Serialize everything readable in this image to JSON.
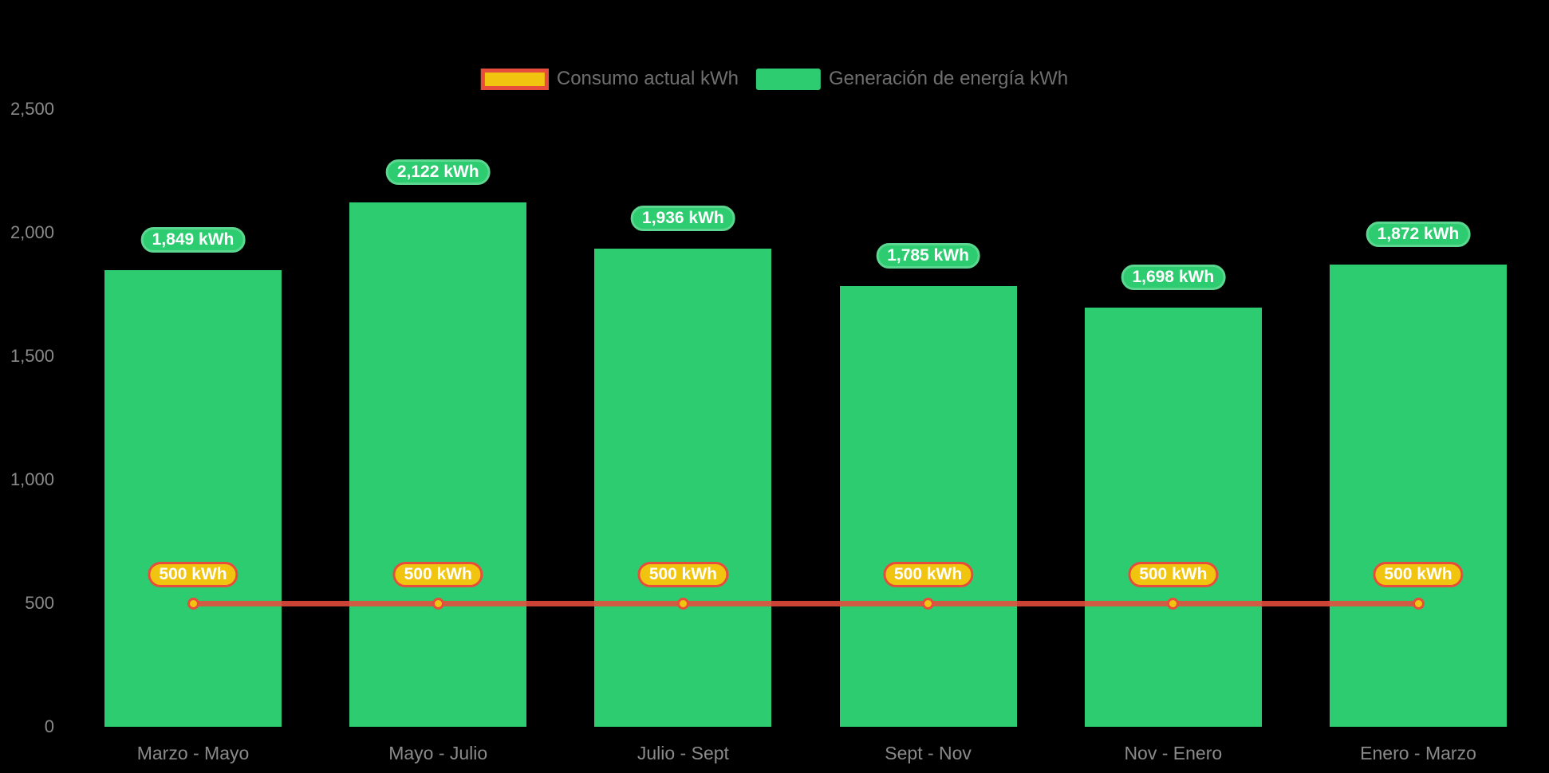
{
  "chart_data": {
    "type": "combo",
    "title": "",
    "categories": [
      "Marzo - Mayo",
      "Mayo - Julio",
      "Julio - Sept",
      "Sept - Nov",
      "Nov - Enero",
      "Enero - Marzo"
    ],
    "series": [
      {
        "name": "Consumo actual kWh",
        "type": "line",
        "color": "#e74c3c",
        "marker_fill": "#f1c40f",
        "values": [
          500,
          500,
          500,
          500,
          500,
          500
        ],
        "point_labels": [
          "500 kWh",
          "500 kWh",
          "500 kWh",
          "500 kWh",
          "500 kWh",
          "500 kWh"
        ]
      },
      {
        "name": "Generación de energía kWh",
        "type": "bar",
        "color": "#2ecc71",
        "values": [
          1849,
          2122,
          1936,
          1785,
          1698,
          1872
        ],
        "point_labels": [
          "1,849 kWh",
          "2,122 kWh",
          "1,936 kWh",
          "1,785 kWh",
          "1,698 kWh",
          "1,872 kWh"
        ]
      }
    ],
    "yaxis": {
      "tick_values": [
        0,
        500,
        1000,
        1500,
        2000,
        2500
      ],
      "tick_labels": [
        "0",
        "500",
        "1,000",
        "1,500",
        "2,000",
        "2,500"
      ],
      "ylim": [
        0,
        2500
      ]
    },
    "grid": false,
    "legend_position": "top",
    "background_color": "#000000"
  },
  "colors": {
    "bar_green": "#2ecc71",
    "bar_pill_border": "#5cd78f",
    "line_red": "#e74c3c",
    "marker_yellow": "#f1c40f",
    "axis_text": "#8a8a8a",
    "legend_text": "#6f6f6f"
  }
}
